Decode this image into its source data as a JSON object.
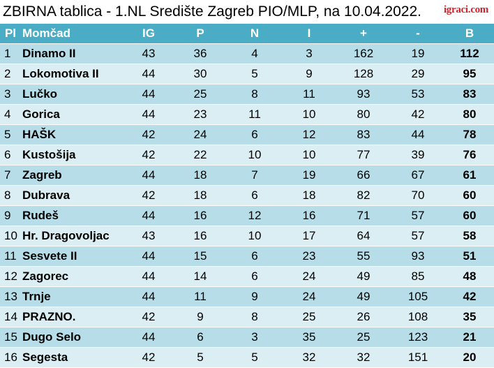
{
  "title": "ZBIRNA tablica - 1.NL Središte Zagreb PIO/MLP, na 10.04.2022.",
  "logo": "igraci.com",
  "colors": {
    "header": "#4bacc6",
    "row_odd": "#b7dee8",
    "row_even": "#daeef3",
    "logo": "#d9202a"
  },
  "headers": [
    "Pl",
    "Momčad",
    "IG",
    "P",
    "N",
    "I",
    "+",
    "-",
    "B"
  ],
  "rows": [
    [
      "1",
      "Dinamo II",
      "43",
      "36",
      "4",
      "3",
      "162",
      "19",
      "112"
    ],
    [
      "2",
      "Lokomotiva II",
      "44",
      "30",
      "5",
      "9",
      "128",
      "29",
      "95"
    ],
    [
      "3",
      "Lučko",
      "44",
      "25",
      "8",
      "11",
      "93",
      "53",
      "83"
    ],
    [
      "4",
      "Gorica",
      "44",
      "23",
      "11",
      "10",
      "80",
      "42",
      "80"
    ],
    [
      "5",
      "HAŠK",
      "42",
      "24",
      "6",
      "12",
      "83",
      "44",
      "78"
    ],
    [
      "6",
      "Kustošija",
      "42",
      "22",
      "10",
      "10",
      "77",
      "39",
      "76"
    ],
    [
      "7",
      "Zagreb",
      "44",
      "18",
      "7",
      "19",
      "66",
      "67",
      "61"
    ],
    [
      "8",
      "Dubrava",
      "42",
      "18",
      "6",
      "18",
      "82",
      "70",
      "60"
    ],
    [
      "9",
      "Rudeš",
      "44",
      "16",
      "12",
      "16",
      "71",
      "57",
      "60"
    ],
    [
      "10",
      "Hr. Dragovoljac",
      "43",
      "16",
      "10",
      "17",
      "64",
      "57",
      "58"
    ],
    [
      "11",
      "Sesvete II",
      "44",
      "15",
      "6",
      "23",
      "55",
      "93",
      "51"
    ],
    [
      "12",
      "Zagorec",
      "44",
      "14",
      "6",
      "24",
      "49",
      "85",
      "48"
    ],
    [
      "13",
      "Trnje",
      "44",
      "11",
      "9",
      "24",
      "49",
      "105",
      "42"
    ],
    [
      "14",
      "PRAZNO.",
      "42",
      "9",
      "8",
      "25",
      "26",
      "108",
      "35"
    ],
    [
      "15",
      "Dugo Selo",
      "44",
      "6",
      "3",
      "35",
      "25",
      "123",
      "21"
    ],
    [
      "16",
      "Segesta",
      "42",
      "5",
      "5",
      "32",
      "32",
      "151",
      "20"
    ]
  ]
}
